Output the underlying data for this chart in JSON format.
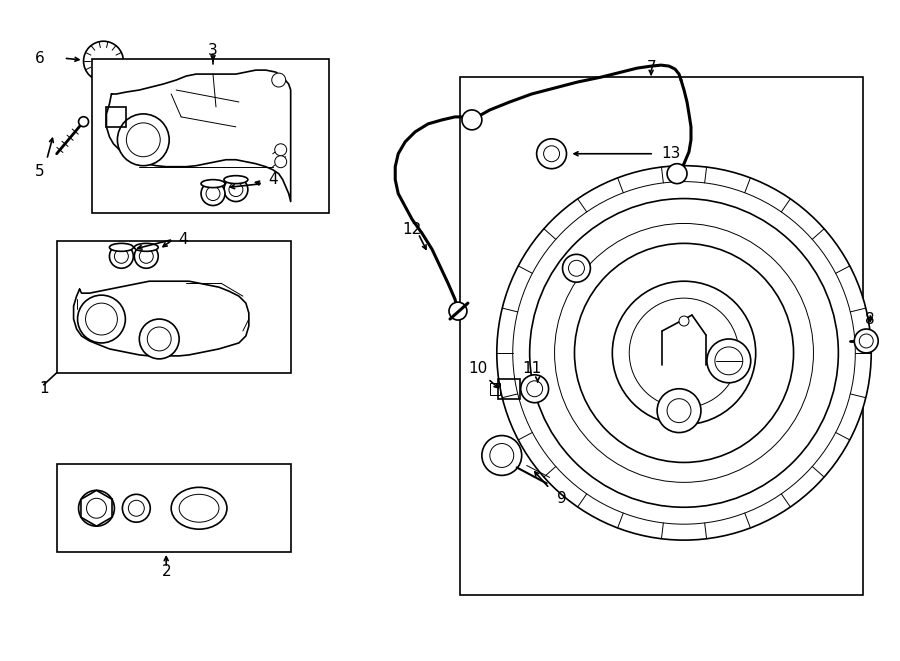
{
  "bg_color": "#ffffff",
  "line_color": "#000000",
  "lw": 1.2,
  "tlw": 0.7,
  "fig_width": 9.0,
  "fig_height": 6.61
}
